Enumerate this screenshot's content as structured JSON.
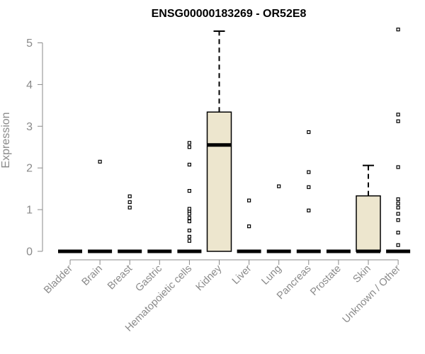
{
  "chart_data": {
    "type": "boxplot",
    "title": "ENSG00000183269 - OR52E8",
    "ylabel": "Expression",
    "xlabel": "",
    "ylim": [
      0,
      5.3
    ],
    "yticks": [
      0,
      1,
      2,
      3,
      4,
      5
    ],
    "categories": [
      "Bladder",
      "Brain",
      "Breast",
      "Gastric",
      "Hematopoietic cells",
      "Kidney",
      "Liver",
      "Lung",
      "Pancreas",
      "Prostate",
      "Skin",
      "Unknown / Other"
    ],
    "box_color": "#ede6ce",
    "boxes": [
      {
        "category": "Bladder",
        "min": 0,
        "q1": 0,
        "median": 0,
        "q3": 0,
        "max": 0,
        "outliers": []
      },
      {
        "category": "Brain",
        "min": 0,
        "q1": 0,
        "median": 0,
        "q3": 0,
        "max": 0,
        "outliers": [
          2.15
        ]
      },
      {
        "category": "Breast",
        "min": 0,
        "q1": 0,
        "median": 0,
        "q3": 0,
        "max": 0,
        "outliers": [
          1.05,
          1.18,
          1.32
        ]
      },
      {
        "category": "Gastric",
        "min": 0,
        "q1": 0,
        "median": 0,
        "q3": 0,
        "max": 0,
        "outliers": []
      },
      {
        "category": "Hematopoietic cells",
        "min": 0,
        "q1": 0,
        "median": 0,
        "q3": 0,
        "max": 0,
        "outliers": [
          0.25,
          0.35,
          0.5,
          0.72,
          0.8,
          0.9,
          0.97,
          1.02,
          1.45,
          2.08,
          2.5,
          2.6
        ]
      },
      {
        "category": "Kidney",
        "min": 0,
        "q1": 0,
        "median": 2.55,
        "q3": 3.34,
        "max": 5.28,
        "outliers": []
      },
      {
        "category": "Liver",
        "min": 0,
        "q1": 0,
        "median": 0,
        "q3": 0,
        "max": 0,
        "outliers": [
          0.6,
          1.22
        ]
      },
      {
        "category": "Lung",
        "min": 0,
        "q1": 0,
        "median": 0,
        "q3": 0,
        "max": 0,
        "outliers": [
          1.56
        ]
      },
      {
        "category": "Pancreas",
        "min": 0,
        "q1": 0,
        "median": 0,
        "q3": 0,
        "max": 0,
        "outliers": [
          0.98,
          1.54,
          1.9,
          2.86
        ]
      },
      {
        "category": "Prostate",
        "min": 0,
        "q1": 0,
        "median": 0,
        "q3": 0,
        "max": 0,
        "outliers": []
      },
      {
        "category": "Skin",
        "min": 0,
        "q1": 0,
        "median": 0,
        "q3": 1.33,
        "max": 2.06,
        "outliers": []
      },
      {
        "category": "Unknown / Other",
        "min": 0,
        "q1": 0,
        "median": 0,
        "q3": 0,
        "max": 0,
        "outliers": [
          0.15,
          0.45,
          0.75,
          0.9,
          1.05,
          1.15,
          1.25,
          2.02,
          3.12,
          3.28,
          5.32
        ]
      }
    ]
  }
}
